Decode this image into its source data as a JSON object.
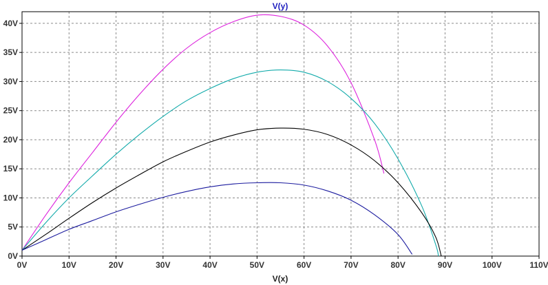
{
  "chart_data": {
    "type": "line",
    "title": "V(y)",
    "xlabel": "V(x)",
    "ylabel": "",
    "xlim": [
      0,
      110
    ],
    "ylim": [
      0,
      42
    ],
    "x_ticks": [
      "0V",
      "10V",
      "20V",
      "30V",
      "40V",
      "50V",
      "60V",
      "70V",
      "80V",
      "90V",
      "100V",
      "110V"
    ],
    "y_ticks": [
      "0V",
      "5V",
      "10V",
      "15V",
      "20V",
      "25V",
      "30V",
      "35V",
      "40V"
    ],
    "grid": true,
    "colors": {
      "title": "#1d1dbf",
      "xlabel": "#222222",
      "grid": "#8a8a8a",
      "frame": "#000000"
    },
    "series": [
      {
        "color": "#dd22dd",
        "points": [
          [
            0,
            1
          ],
          [
            5,
            7
          ],
          [
            10,
            12.6
          ],
          [
            15,
            17.8
          ],
          [
            20,
            23
          ],
          [
            25,
            27.8
          ],
          [
            30,
            32.1
          ],
          [
            35,
            35.7
          ],
          [
            40,
            38.4
          ],
          [
            45,
            40.3
          ],
          [
            50,
            41.4
          ],
          [
            55,
            41.2
          ],
          [
            60,
            39.7
          ],
          [
            65,
            36.1
          ],
          [
            70,
            29.8
          ],
          [
            75,
            20.0
          ],
          [
            77,
            14.2
          ]
        ]
      },
      {
        "color": "#11aaaa",
        "points": [
          [
            0,
            1
          ],
          [
            5,
            5.7
          ],
          [
            10,
            10
          ],
          [
            15,
            13.8
          ],
          [
            20,
            17.5
          ],
          [
            25,
            20.9
          ],
          [
            30,
            24
          ],
          [
            35,
            26.7
          ],
          [
            40,
            28.8
          ],
          [
            45,
            30.5
          ],
          [
            50,
            31.6
          ],
          [
            55,
            32
          ],
          [
            60,
            31.6
          ],
          [
            65,
            30
          ],
          [
            70,
            27.1
          ],
          [
            75,
            22.8
          ],
          [
            80,
            16.7
          ],
          [
            85,
            8.7
          ],
          [
            88,
            2
          ],
          [
            88.6,
            0
          ]
        ]
      },
      {
        "color": "#000000",
        "points": [
          [
            0,
            1
          ],
          [
            5,
            3.7
          ],
          [
            10,
            6.5
          ],
          [
            15,
            9.2
          ],
          [
            20,
            11.7
          ],
          [
            25,
            14
          ],
          [
            30,
            16.2
          ],
          [
            35,
            18
          ],
          [
            40,
            19.6
          ],
          [
            45,
            20.8
          ],
          [
            50,
            21.7
          ],
          [
            55,
            22
          ],
          [
            60,
            21.8
          ],
          [
            65,
            20.9
          ],
          [
            70,
            19.1
          ],
          [
            75,
            16.4
          ],
          [
            80,
            12.6
          ],
          [
            85,
            7.5
          ],
          [
            88,
            3.3
          ],
          [
            89.2,
            0
          ]
        ]
      },
      {
        "color": "#1a1a9e",
        "points": [
          [
            0,
            1
          ],
          [
            5,
            2.8
          ],
          [
            10,
            4.6
          ],
          [
            15,
            6.1
          ],
          [
            20,
            7.6
          ],
          [
            25,
            8.9
          ],
          [
            30,
            10.1
          ],
          [
            35,
            11.1
          ],
          [
            40,
            11.9
          ],
          [
            45,
            12.4
          ],
          [
            50,
            12.6
          ],
          [
            55,
            12.6
          ],
          [
            60,
            12.2
          ],
          [
            65,
            11.2
          ],
          [
            70,
            9.6
          ],
          [
            75,
            7.1
          ],
          [
            80,
            3.7
          ],
          [
            83,
            0.3
          ]
        ]
      }
    ]
  }
}
